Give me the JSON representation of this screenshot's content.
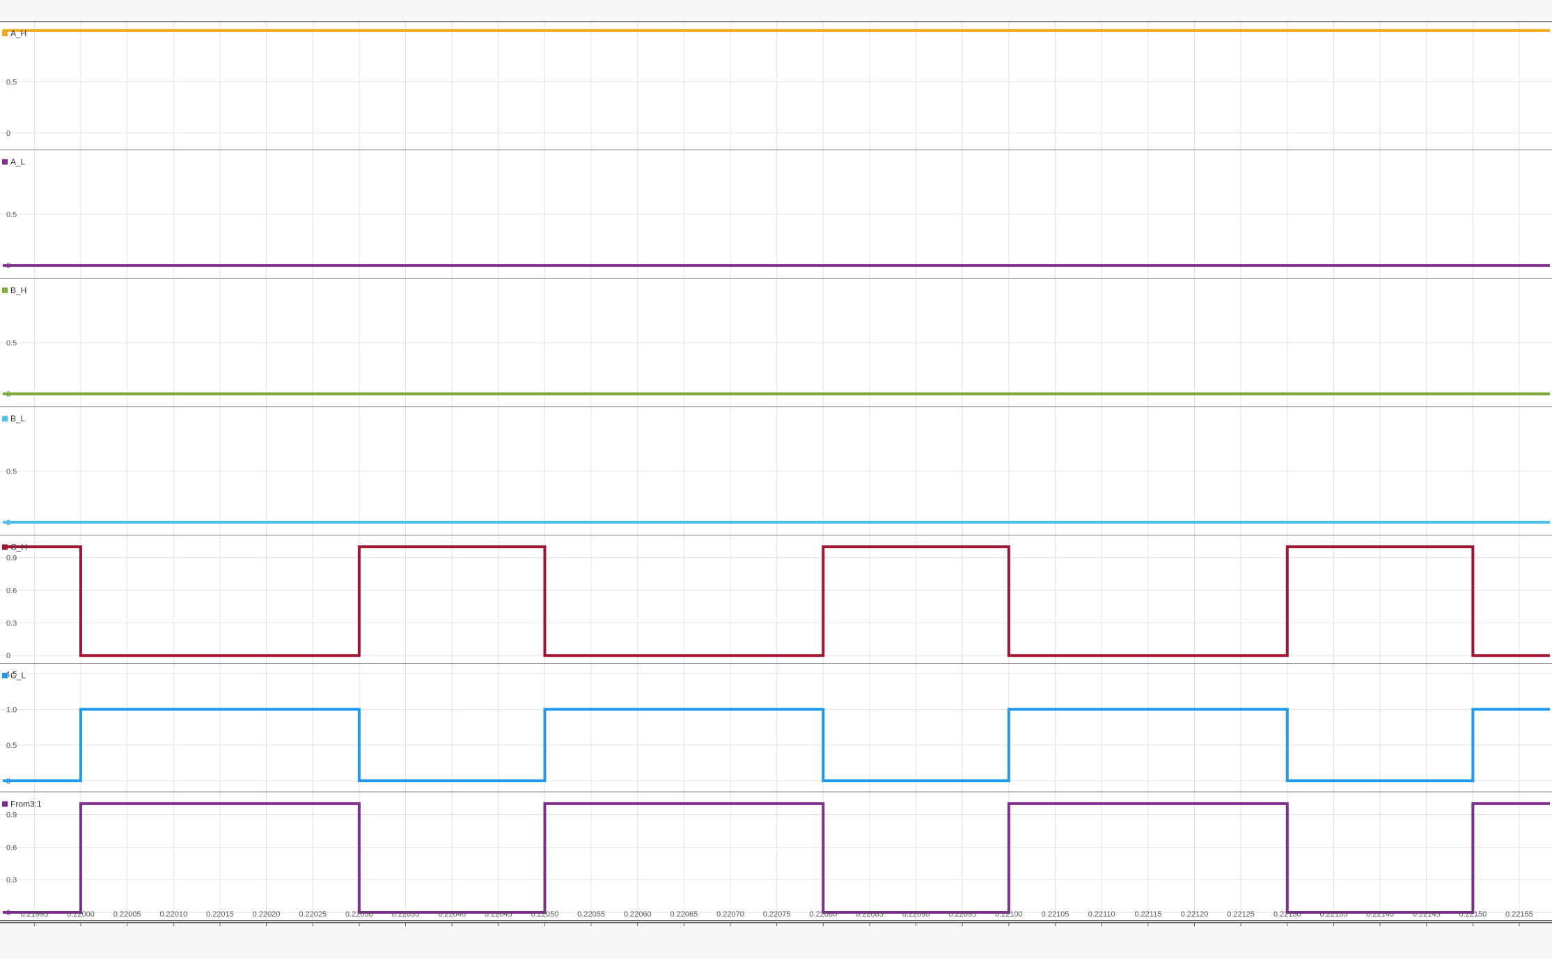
{
  "chart_data": {
    "type": "line",
    "step": true,
    "grid": true,
    "legend_placement": "top-left of each subplot",
    "x_ticks": [
      0.21995,
      0.22,
      0.22005,
      0.2201,
      0.22015,
      0.2202,
      0.22025,
      0.2203,
      0.22035,
      0.2204,
      0.22045,
      0.2205,
      0.22055,
      0.2206,
      0.22065,
      0.2207,
      0.22075,
      0.2208,
      0.22085,
      0.2209,
      0.22095,
      0.221,
      0.22105,
      0.2211,
      0.22115,
      0.2212,
      0.22125,
      0.2213,
      0.22135,
      0.2214,
      0.22145,
      0.2215,
      0.22155
    ],
    "x_tick_labels": [
      "0.21995",
      "0.22000",
      "0.22005",
      "0.22010",
      "0.22015",
      "0.22020",
      "0.22025",
      "0.22030",
      "0.22035",
      "0.22040",
      "0.22045",
      "0.22050",
      "0.22055",
      "0.22060",
      "0.22065",
      "0.22070",
      "0.22075",
      "0.22080",
      "0.22085",
      "0.22090",
      "0.22095",
      "0.22100",
      "0.22105",
      "0.22110",
      "0.22115",
      "0.22120",
      "0.22125",
      "0.22130",
      "0.22135",
      "0.22140",
      "0.22145",
      "0.22150",
      "0.22155"
    ],
    "xlim": [
      0.219916,
      0.221583
    ],
    "series": [
      {
        "name": "A_H",
        "color": "#f0a81e",
        "ylim": [
          -0.14,
          1.06
        ],
        "yticks": [
          "0",
          "0.5"
        ],
        "x": [
          0.219916,
          0.221583
        ],
        "y": [
          1,
          1
        ]
      },
      {
        "name": "A_L",
        "color": "#7e2f8e",
        "ylim": [
          -0.1,
          1.1
        ],
        "yticks": [
          "0",
          "0.5"
        ],
        "x": [
          0.219916,
          0.221583
        ],
        "y": [
          0,
          0
        ]
      },
      {
        "name": "B_H",
        "color": "#77ac30",
        "ylim": [
          -0.1,
          1.1
        ],
        "yticks": [
          "0",
          "0.5"
        ],
        "x": [
          0.219916,
          0.221583
        ],
        "y": [
          0,
          0
        ]
      },
      {
        "name": "B_L",
        "color": "#4dbeee",
        "ylim": [
          -0.1,
          1.1
        ],
        "yticks": [
          "0",
          "0.5"
        ],
        "x": [
          0.219916,
          0.221583
        ],
        "y": [
          0,
          0
        ]
      },
      {
        "name": "C_H",
        "color": "#a2142f",
        "ylim": [
          -0.05,
          1.08
        ],
        "yticks": [
          "0",
          "0.3",
          "0.6",
          "0.9"
        ],
        "x": [
          0.219916,
          0.22,
          0.2203,
          0.2205,
          0.2208,
          0.221,
          0.2213,
          0.2215,
          0.221583
        ],
        "y": [
          1,
          0,
          1,
          0,
          1,
          0,
          1,
          0,
          0
        ]
      },
      {
        "name": "C_L",
        "color": "#1e9bf0",
        "ylim": [
          -0.12,
          1.6
        ],
        "yticks": [
          "0",
          "0.5",
          "1.0",
          "1.5"
        ],
        "x": [
          0.219916,
          0.22,
          0.2203,
          0.2205,
          0.2208,
          0.221,
          0.2213,
          0.2215,
          0.221583
        ],
        "y": [
          0,
          1,
          0,
          1,
          0,
          1,
          0,
          1,
          1
        ]
      },
      {
        "name": "From3:1",
        "color": "#7e2f8e",
        "ylim": [
          -0.05,
          1.08
        ],
        "yticks": [
          "0",
          "0.3",
          "0.6",
          "0.9"
        ],
        "x": [
          0.219916,
          0.22,
          0.2203,
          0.2205,
          0.2208,
          0.221,
          0.2213,
          0.2215,
          0.221583
        ],
        "y": [
          0,
          1,
          0,
          1,
          0,
          1,
          0,
          1,
          1
        ]
      }
    ]
  }
}
